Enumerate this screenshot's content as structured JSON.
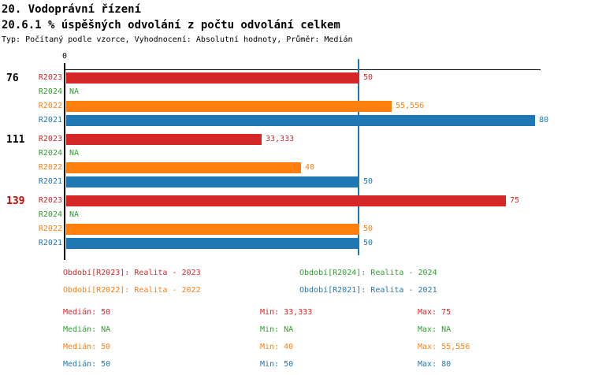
{
  "header": {
    "title": "20. Vodoprávní řízení",
    "subtitle": "20.6.1 % úspěšných odvolání z počtu odvolání celkem",
    "meta": "Typ: Počítaný podle vzorce, Vyhodnocení: Absolutní hodnoty, Průměr: Medián"
  },
  "colors": {
    "r2023": "#d62728",
    "r2024": "#2ca02c",
    "r2022": "#ff7f0e",
    "r2021": "#1f77b4",
    "axis": "#000000",
    "median_line": "#1f77b4",
    "highlight": "#cc0000",
    "group_label": "#000000"
  },
  "chart_data": {
    "type": "bar",
    "orientation": "horizontal",
    "title": "20.6.1 % úspěšných odvolání z počtu odvolání celkem",
    "categories": [
      "76",
      "111",
      "139"
    ],
    "category_label_colors": [
      "black",
      "black",
      "red"
    ],
    "series": [
      {
        "name": "R2023",
        "color": "#d62728",
        "values": [
          50,
          33.333,
          75
        ],
        "labels": [
          "50",
          "33,333",
          "75"
        ]
      },
      {
        "name": "R2024",
        "color": "#2ca02c",
        "values": [
          null,
          null,
          null
        ],
        "labels": [
          "NA",
          "NA",
          "NA"
        ]
      },
      {
        "name": "R2022",
        "color": "#ff7f0e",
        "values": [
          55.556,
          40,
          50
        ],
        "labels": [
          "55,556",
          "40",
          "50"
        ]
      },
      {
        "name": "R2021",
        "color": "#1f77b4",
        "values": [
          80,
          50,
          50
        ],
        "labels": [
          "80",
          "50",
          "50"
        ]
      }
    ],
    "xlim": [
      0,
      80.7
    ],
    "tick_labels": [
      "0"
    ],
    "median_line_value": 50,
    "grid": false,
    "legend_position": "bottom"
  },
  "legend": [
    {
      "label": "Období[R2023]: Realita - 2023",
      "color": "#d62728"
    },
    {
      "label": "Období[R2024]: Realita - 2024",
      "color": "#2ca02c"
    },
    {
      "label": "Období[R2022]: Realita - 2022",
      "color": "#ff7f0e"
    },
    {
      "label": "Období[R2021]: Realita - 2021",
      "color": "#1f77b4"
    }
  ],
  "stats": [
    {
      "color": "#d62728",
      "median": "Medián: 50",
      "min": "Min: 33,333",
      "max": "Max: 75"
    },
    {
      "color": "#2ca02c",
      "median": "Medián: NA",
      "min": "Min: NA",
      "max": "Max: NA"
    },
    {
      "color": "#ff7f0e",
      "median": "Medián: 50",
      "min": "Min: 40",
      "max": "Max: 55,556"
    },
    {
      "color": "#1f77b4",
      "median": "Medián: 50",
      "min": "Min: 50",
      "max": "Max: 80"
    }
  ]
}
